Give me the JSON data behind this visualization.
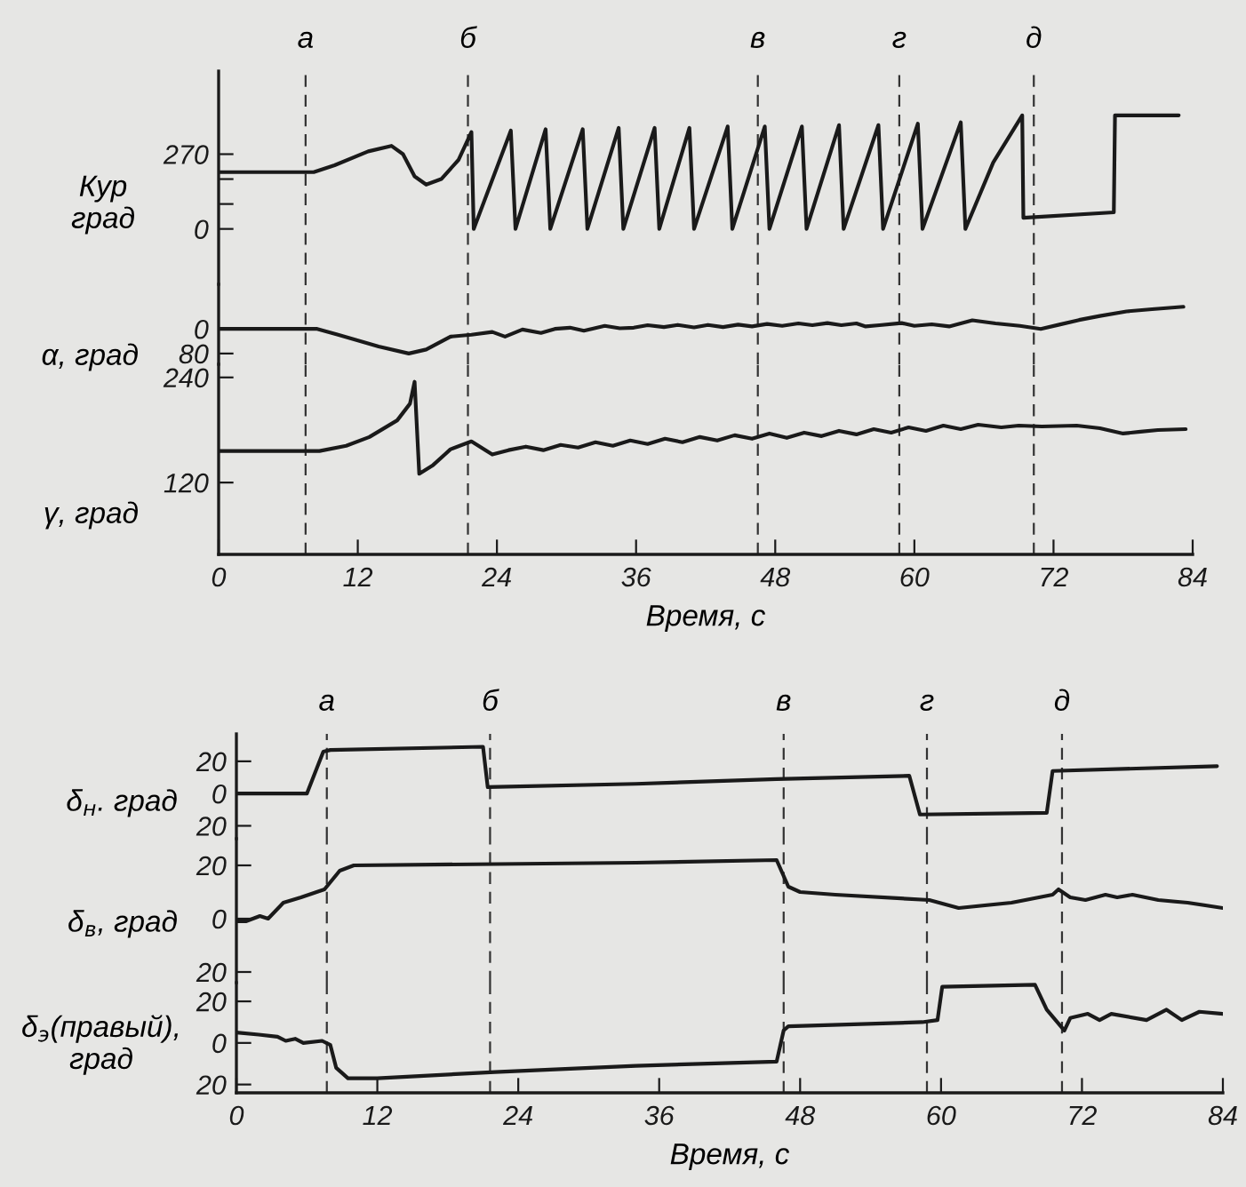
{
  "chart_data": [
    {
      "type": "line",
      "ylabel": "Кур\nград",
      "color": "#1a1a1a",
      "xlim": [
        0,
        84
      ],
      "ylim": [
        -200,
        570
      ],
      "yticks": [
        0,
        {
          "value": 90,
          "label": null
        },
        {
          "value": 180,
          "label": null
        },
        270
      ],
      "tick_labels": "y",
      "x": [
        0,
        8.2,
        10,
        12.9,
        14.9,
        15.9,
        16.9,
        17.9,
        19.2,
        20.7,
        21.8,
        22.0,
        25.2,
        25.6,
        28.2,
        28.6,
        31.4,
        31.8,
        34.5,
        34.9,
        37.6,
        38.0,
        40.6,
        41.0,
        43.9,
        44.3,
        47.1,
        47.5,
        50.3,
        50.7,
        53.5,
        53.9,
        56.9,
        57.3,
        60.3,
        60.7,
        64.0,
        64.4,
        66.8,
        69.3,
        69.4,
        77.2,
        77.3,
        82.8
      ],
      "values": [
        205,
        205,
        230,
        280,
        300,
        270,
        190,
        160,
        180,
        250,
        350,
        0,
        355,
        0,
        360,
        0,
        360,
        0,
        365,
        0,
        365,
        0,
        365,
        0,
        370,
        0,
        370,
        0,
        370,
        0,
        375,
        0,
        375,
        0,
        380,
        0,
        385,
        0,
        240,
        410,
        40,
        60,
        410,
        410
      ],
      "ref_lines": [
        {
          "axis": "x",
          "value": 7.5,
          "label": "а",
          "color": "#333333",
          "line_style": "dashed"
        },
        {
          "axis": "x",
          "value": 21.5,
          "label": "б",
          "color": "#333333",
          "line_style": "dashed"
        },
        {
          "axis": "x",
          "value": 46.5,
          "label": "в",
          "color": "#333333",
          "line_style": "dashed"
        },
        {
          "axis": "x",
          "value": 58.7,
          "label": "г",
          "color": "#333333",
          "line_style": "dashed"
        },
        {
          "axis": "x",
          "value": 70.3,
          "label": "д",
          "color": "#333333",
          "line_style": "dashed"
        }
      ]
    },
    {
      "type": "line",
      "ylabel": "α, град",
      "color": "#1a1a1a",
      "xlim": [
        0,
        84
      ],
      "ylim": [
        115,
        -145
      ],
      "yticks": [
        0,
        80
      ],
      "tick_labels": "y",
      "x": [
        0,
        8.5,
        10.3,
        13.8,
        16.4,
        17.9,
        20.0,
        21.8,
        23.6,
        24.7,
        26.2,
        27.8,
        29.0,
        30.3,
        31.5,
        33.3,
        34.6,
        35.8,
        37.0,
        38.4,
        39.6,
        41.0,
        42.2,
        43.5,
        44.8,
        46.0,
        47.3,
        48.6,
        50.0,
        51.2,
        52.5,
        53.7,
        55.0,
        55.8,
        57.0,
        58.9,
        60.0,
        61.5,
        63.0,
        65.0,
        67.0,
        69.1,
        70.9,
        72.5,
        74.2,
        76.0,
        78.3,
        80.5,
        83.2
      ],
      "values": [
        0,
        0,
        19,
        57,
        80,
        67,
        25,
        19,
        10,
        25,
        2,
        13,
        0,
        -4,
        6,
        -10,
        -2,
        -4,
        -12,
        -6,
        -13,
        -5,
        -13,
        -6,
        -14,
        -8,
        -16,
        -10,
        -18,
        -12,
        -19,
        -12,
        -18,
        -8,
        -12,
        -19,
        -10,
        -15,
        -8,
        -28,
        -18,
        -10,
        0,
        -14,
        -29,
        -42,
        -57,
        -64,
        -72
      ],
      "ref_lines": [
        {
          "axis": "x",
          "value": 7.5,
          "color": "#333333",
          "line_style": "dashed"
        },
        {
          "axis": "x",
          "value": 21.5,
          "color": "#333333",
          "line_style": "dashed"
        },
        {
          "axis": "x",
          "value": 46.5,
          "color": "#333333",
          "line_style": "dashed"
        },
        {
          "axis": "x",
          "value": 58.7,
          "color": "#333333",
          "line_style": "dashed"
        },
        {
          "axis": "x",
          "value": 70.3,
          "color": "#333333",
          "line_style": "dashed"
        }
      ]
    },
    {
      "type": "line",
      "ylabel": "γ, град",
      "xlabel": "Время, с",
      "color": "#1a1a1a",
      "xlim": [
        0,
        84
      ],
      "ylim": [
        38,
        255
      ],
      "xticks": [
        0,
        12,
        24,
        36,
        48,
        60,
        72,
        84
      ],
      "yticks": [
        120,
        240
      ],
      "x": [
        0,
        8.7,
        11,
        13,
        15.4,
        16.5,
        16.9,
        17.3,
        18.5,
        20.0,
        21.8,
        23.6,
        25,
        26.5,
        28,
        29.5,
        31,
        32.5,
        34,
        35.5,
        37,
        38.5,
        40,
        41.5,
        43,
        44.5,
        46,
        47.5,
        49,
        50.5,
        52,
        53.5,
        55,
        56.5,
        58,
        59.5,
        61,
        62.5,
        64,
        65.5,
        67.5,
        69,
        71,
        74,
        76,
        78,
        79.5,
        81,
        83.4
      ],
      "values": [
        156,
        156,
        162,
        172,
        191,
        210,
        235,
        130,
        140,
        158,
        167,
        152,
        157,
        161,
        157,
        163,
        160,
        166,
        162,
        168,
        164,
        170,
        166,
        172,
        168,
        174,
        170,
        176,
        171,
        177,
        173,
        179,
        175,
        181,
        177,
        183,
        179,
        185,
        181,
        186,
        183,
        185,
        184,
        185,
        182,
        176,
        178,
        180,
        181
      ],
      "ref_lines": [
        {
          "axis": "x",
          "value": 7.5,
          "color": "#333333",
          "line_style": "dashed"
        },
        {
          "axis": "x",
          "value": 21.5,
          "color": "#333333",
          "line_style": "dashed"
        },
        {
          "axis": "x",
          "value": 46.5,
          "color": "#333333",
          "line_style": "dashed"
        },
        {
          "axis": "x",
          "value": 58.7,
          "color": "#333333",
          "line_style": "dashed"
        },
        {
          "axis": "x",
          "value": 70.3,
          "color": "#333333",
          "line_style": "dashed"
        }
      ]
    },
    {
      "type": "line",
      "ylabel": "δ$_{н}$. град",
      "color": "#1a1a1a",
      "xlim": [
        0,
        84
      ],
      "ylim": [
        -28,
        37
      ],
      "yticks": [
        {
          "value": -20,
          "label": "20"
        },
        0,
        20
      ],
      "tick_labels": "y",
      "x": [
        0,
        6.0,
        7.4,
        8.0,
        21.0,
        21.4,
        34,
        46,
        57.3,
        58.2,
        69.0,
        69.5,
        83.5
      ],
      "values": [
        0,
        0,
        26,
        27,
        29,
        4,
        6,
        9,
        11,
        -13,
        -12,
        14,
        17
      ],
      "ref_lines": [
        {
          "axis": "x",
          "value": 7.7,
          "label": "а",
          "color": "#333333",
          "line_style": "dashed"
        },
        {
          "axis": "x",
          "value": 21.6,
          "label": "б",
          "color": "#333333",
          "line_style": "dashed"
        },
        {
          "axis": "x",
          "value": 46.6,
          "label": "в",
          "color": "#333333",
          "line_style": "dashed"
        },
        {
          "axis": "x",
          "value": 58.8,
          "label": "г",
          "color": "#333333",
          "line_style": "dashed"
        },
        {
          "axis": "x",
          "value": 70.3,
          "label": "д",
          "color": "#333333",
          "line_style": "dashed"
        }
      ]
    },
    {
      "type": "line",
      "ylabel": "δ$_{в}$, град",
      "color": "#1a1a1a",
      "xlim": [
        0,
        84
      ],
      "ylim": [
        -24,
        30
      ],
      "yticks": [
        {
          "value": -20,
          "label": "20"
        },
        0,
        20
      ],
      "tick_labels": "y",
      "x": [
        0,
        0.8,
        2.0,
        2.7,
        4.0,
        5.5,
        7.5,
        8.8,
        10,
        34,
        46,
        47,
        48,
        51,
        59,
        61.5,
        66,
        69.5,
        70,
        71,
        72.3,
        74,
        75,
        76.3,
        78.5,
        81,
        84
      ],
      "values": [
        -1,
        -1,
        1,
        0,
        6,
        8,
        11,
        18,
        20,
        21,
        22,
        12,
        10,
        9,
        7,
        4,
        6,
        9,
        11,
        8,
        7,
        9,
        8,
        9,
        7,
        6,
        4
      ],
      "ref_lines": [
        {
          "axis": "x",
          "value": 7.7,
          "color": "#333333",
          "line_style": "dashed"
        },
        {
          "axis": "x",
          "value": 21.6,
          "color": "#333333",
          "line_style": "dashed"
        },
        {
          "axis": "x",
          "value": 46.6,
          "color": "#333333",
          "line_style": "dashed"
        },
        {
          "axis": "x",
          "value": 58.8,
          "color": "#333333",
          "line_style": "dashed"
        },
        {
          "axis": "x",
          "value": 70.3,
          "color": "#333333",
          "line_style": "dashed"
        }
      ]
    },
    {
      "type": "line",
      "ylabel": "δ$_{э}$(правый),\nград",
      "xlabel": "Время, с",
      "color": "#1a1a1a",
      "xlim": [
        0,
        84
      ],
      "ylim": [
        -24,
        29
      ],
      "xticks": [
        0,
        12,
        24,
        36,
        48,
        60,
        72,
        84
      ],
      "yticks": [
        {
          "value": -20,
          "label": "20"
        },
        0,
        20
      ],
      "x": [
        0,
        1.9,
        3.5,
        4.2,
        5.0,
        5.7,
        7.3,
        8.0,
        8.5,
        9.5,
        12,
        22,
        34,
        46,
        46.6,
        47,
        58.4,
        59.7,
        60.1,
        68,
        69,
        70.5,
        71,
        72.5,
        73.5,
        74.5,
        77.5,
        79.2,
        80.5,
        82,
        84
      ],
      "values": [
        5,
        4,
        3,
        1,
        2,
        0,
        1,
        -1,
        -12,
        -17,
        -17,
        -14,
        -11,
        -9,
        6,
        8,
        10,
        11,
        27,
        28,
        16,
        6,
        12,
        14,
        11,
        14,
        11,
        16,
        11,
        15,
        14
      ],
      "ref_lines": [
        {
          "axis": "x",
          "value": 7.7,
          "color": "#333333",
          "line_style": "dashed"
        },
        {
          "axis": "x",
          "value": 21.6,
          "color": "#333333",
          "line_style": "dashed"
        },
        {
          "axis": "x",
          "value": 46.6,
          "color": "#333333",
          "line_style": "dashed"
        },
        {
          "axis": "x",
          "value": 58.8,
          "color": "#333333",
          "line_style": "dashed"
        },
        {
          "axis": "x",
          "value": 70.3,
          "color": "#333333",
          "line_style": "dashed"
        }
      ]
    }
  ]
}
